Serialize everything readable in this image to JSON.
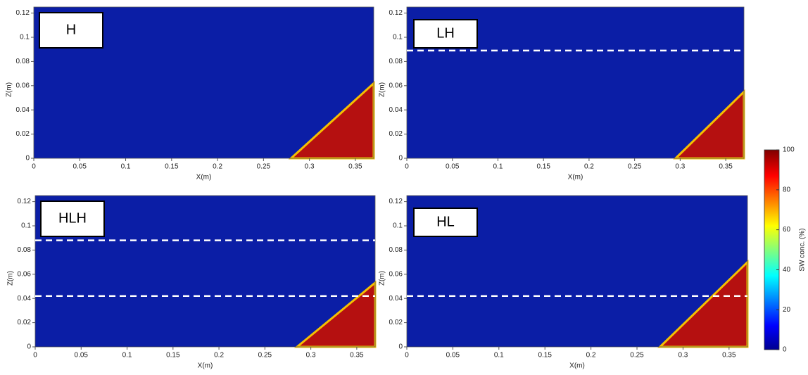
{
  "chart_data": [
    {
      "type": "area",
      "title": "H",
      "xlabel": "X(m)",
      "ylabel": "Z(m)",
      "xlim": [
        0,
        0.37
      ],
      "ylim": [
        0,
        0.125
      ],
      "xticks": [
        0,
        0.05,
        0.1,
        0.15,
        0.2,
        0.25,
        0.3,
        0.35
      ],
      "yticks": [
        0,
        0.02,
        0.04,
        0.06,
        0.08,
        0.1,
        0.12
      ],
      "x": [
        0.28,
        0.37
      ],
      "values": [
        0,
        0.062
      ],
      "color": "#b51010",
      "background": "#0b1ea6",
      "hlines": []
    },
    {
      "type": "area",
      "title": "LH",
      "xlabel": "X(m)",
      "ylabel": "Z(m)",
      "xlim": [
        0,
        0.37
      ],
      "ylim": [
        0,
        0.125
      ],
      "xticks": [
        0,
        0.05,
        0.1,
        0.15,
        0.2,
        0.25,
        0.3,
        0.35
      ],
      "yticks": [
        0,
        0.02,
        0.04,
        0.06,
        0.08,
        0.1,
        0.12
      ],
      "x": [
        0.295,
        0.37
      ],
      "values": [
        0,
        0.055
      ],
      "color": "#b51010",
      "background": "#0b1ea6",
      "hlines": [
        0.089
      ]
    },
    {
      "type": "area",
      "title": "HLH",
      "xlabel": "X(m)",
      "ylabel": "Z(m)",
      "xlim": [
        0,
        0.37
      ],
      "ylim": [
        0,
        0.125
      ],
      "xticks": [
        0,
        0.05,
        0.1,
        0.15,
        0.2,
        0.25,
        0.3,
        0.35
      ],
      "yticks": [
        0,
        0.02,
        0.04,
        0.06,
        0.08,
        0.1,
        0.12
      ],
      "x": [
        0.285,
        0.37
      ],
      "values": [
        0,
        0.053
      ],
      "color": "#b51010",
      "background": "#0b1ea6",
      "hlines": [
        0.088,
        0.042
      ]
    },
    {
      "type": "area",
      "title": "HL",
      "xlabel": "X(m)",
      "ylabel": "Z(m)",
      "xlim": [
        0,
        0.37
      ],
      "ylim": [
        0,
        0.125
      ],
      "xticks": [
        0,
        0.05,
        0.1,
        0.15,
        0.2,
        0.25,
        0.3,
        0.35
      ],
      "yticks": [
        0,
        0.02,
        0.04,
        0.06,
        0.08,
        0.1,
        0.12
      ],
      "x": [
        0.275,
        0.37
      ],
      "values": [
        0,
        0.07
      ],
      "color": "#b51010",
      "background": "#0b1ea6",
      "hlines": [
        0.042
      ]
    }
  ],
  "colorbar": {
    "label": "SW conc. (%)",
    "lim": [
      0,
      100
    ],
    "ticks": [
      0,
      20,
      40,
      60,
      80,
      100
    ]
  }
}
